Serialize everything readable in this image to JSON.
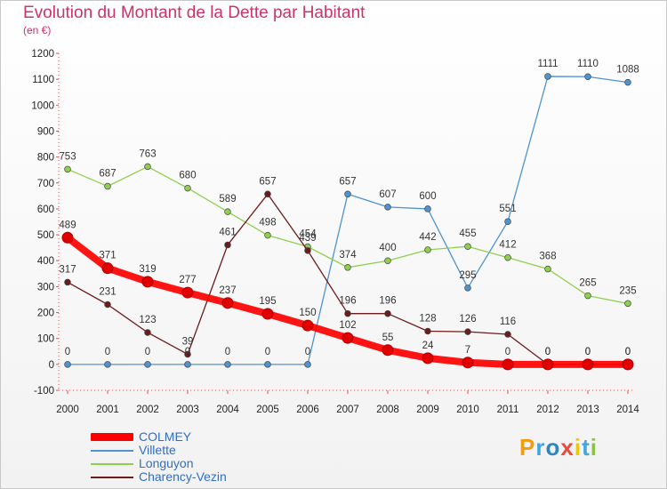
{
  "title": "Evolution du Montant de la Dette par Habitant",
  "subtitle": "(en €)",
  "logo": {
    "text": "Proxiti",
    "letters": [
      "P",
      "r",
      "o",
      "x",
      "i",
      "t",
      "i"
    ],
    "colors": [
      "#f39c12",
      "#3fa7dc",
      "#2e86c1",
      "#e74c3c",
      "#f1c40f",
      "#3fa7dc",
      "#8bc34a"
    ]
  },
  "chart_data": {
    "type": "line",
    "categories": [
      "2000",
      "2001",
      "2002",
      "2003",
      "2004",
      "2005",
      "2006",
      "2007",
      "2008",
      "2009",
      "2010",
      "2011",
      "2012",
      "2013",
      "2014"
    ],
    "ylim": [
      -100,
      1200
    ],
    "yticks": [
      -100,
      0,
      100,
      200,
      300,
      400,
      500,
      600,
      700,
      800,
      900,
      1000,
      1100,
      1200
    ],
    "grid": false,
    "legend": "bottom-left",
    "series": [
      {
        "name": "Villette",
        "color": "#4f93cf",
        "values": [
          0,
          0,
          0,
          0,
          0,
          0,
          0,
          657,
          607,
          600,
          295,
          551,
          1111,
          1110,
          1088
        ]
      },
      {
        "name": "Longuyon",
        "color": "#8fcf50",
        "values": [
          753,
          687,
          763,
          680,
          589,
          498,
          454,
          374,
          400,
          442,
          455,
          412,
          368,
          265,
          235
        ]
      },
      {
        "name": "Charency-Vezin",
        "color": "#6b1c1c",
        "values": [
          317,
          231,
          123,
          39,
          461,
          657,
          439,
          196,
          196,
          128,
          126,
          116,
          0,
          0,
          0
        ]
      },
      {
        "name": "COLMEY",
        "color": "#ff0000",
        "values": [
          489,
          371,
          319,
          277,
          237,
          195,
          150,
          102,
          55,
          24,
          7,
          0,
          0,
          0,
          0
        ]
      }
    ]
  }
}
